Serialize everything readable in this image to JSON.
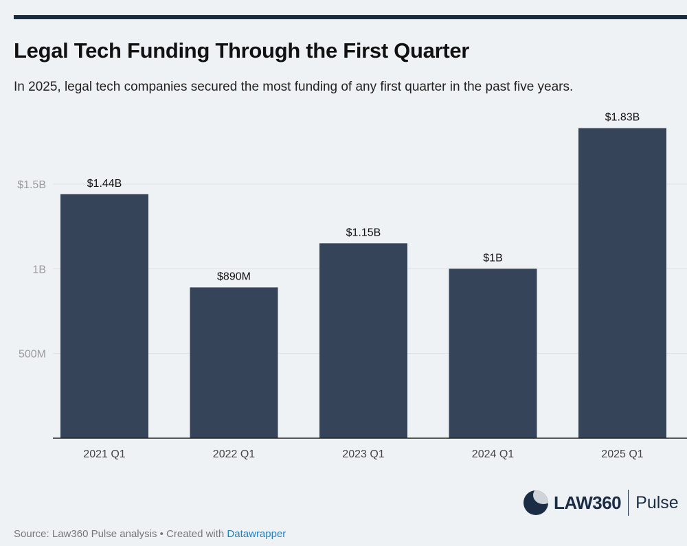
{
  "title": "Legal Tech Funding Through the First Quarter",
  "subtitle": "In 2025, legal tech companies secured the most funding of any first quarter in the past five years.",
  "chart_data": {
    "type": "bar",
    "categories": [
      "2021 Q1",
      "2022 Q1",
      "2023 Q1",
      "2024 Q1",
      "2025 Q1"
    ],
    "values": [
      1.44,
      0.89,
      1.15,
      1.0,
      1.83
    ],
    "data_labels": [
      "$1.44B",
      "$890M",
      "$1.15B",
      "$1B",
      "$1.83B"
    ],
    "y_ticks": [
      {
        "value": 0.5,
        "label": "500M"
      },
      {
        "value": 1.0,
        "label": "1B"
      },
      {
        "value": 1.5,
        "label": "$1.5B"
      }
    ],
    "ylim": [
      0,
      1.83
    ],
    "unit": "billions USD",
    "grid": true,
    "bar_color": "#364459"
  },
  "logo": {
    "brand": "LAW360",
    "product": "Pulse"
  },
  "footer": {
    "source": "Source: Law360 Pulse analysis • Created with ",
    "link": "Datawrapper"
  }
}
